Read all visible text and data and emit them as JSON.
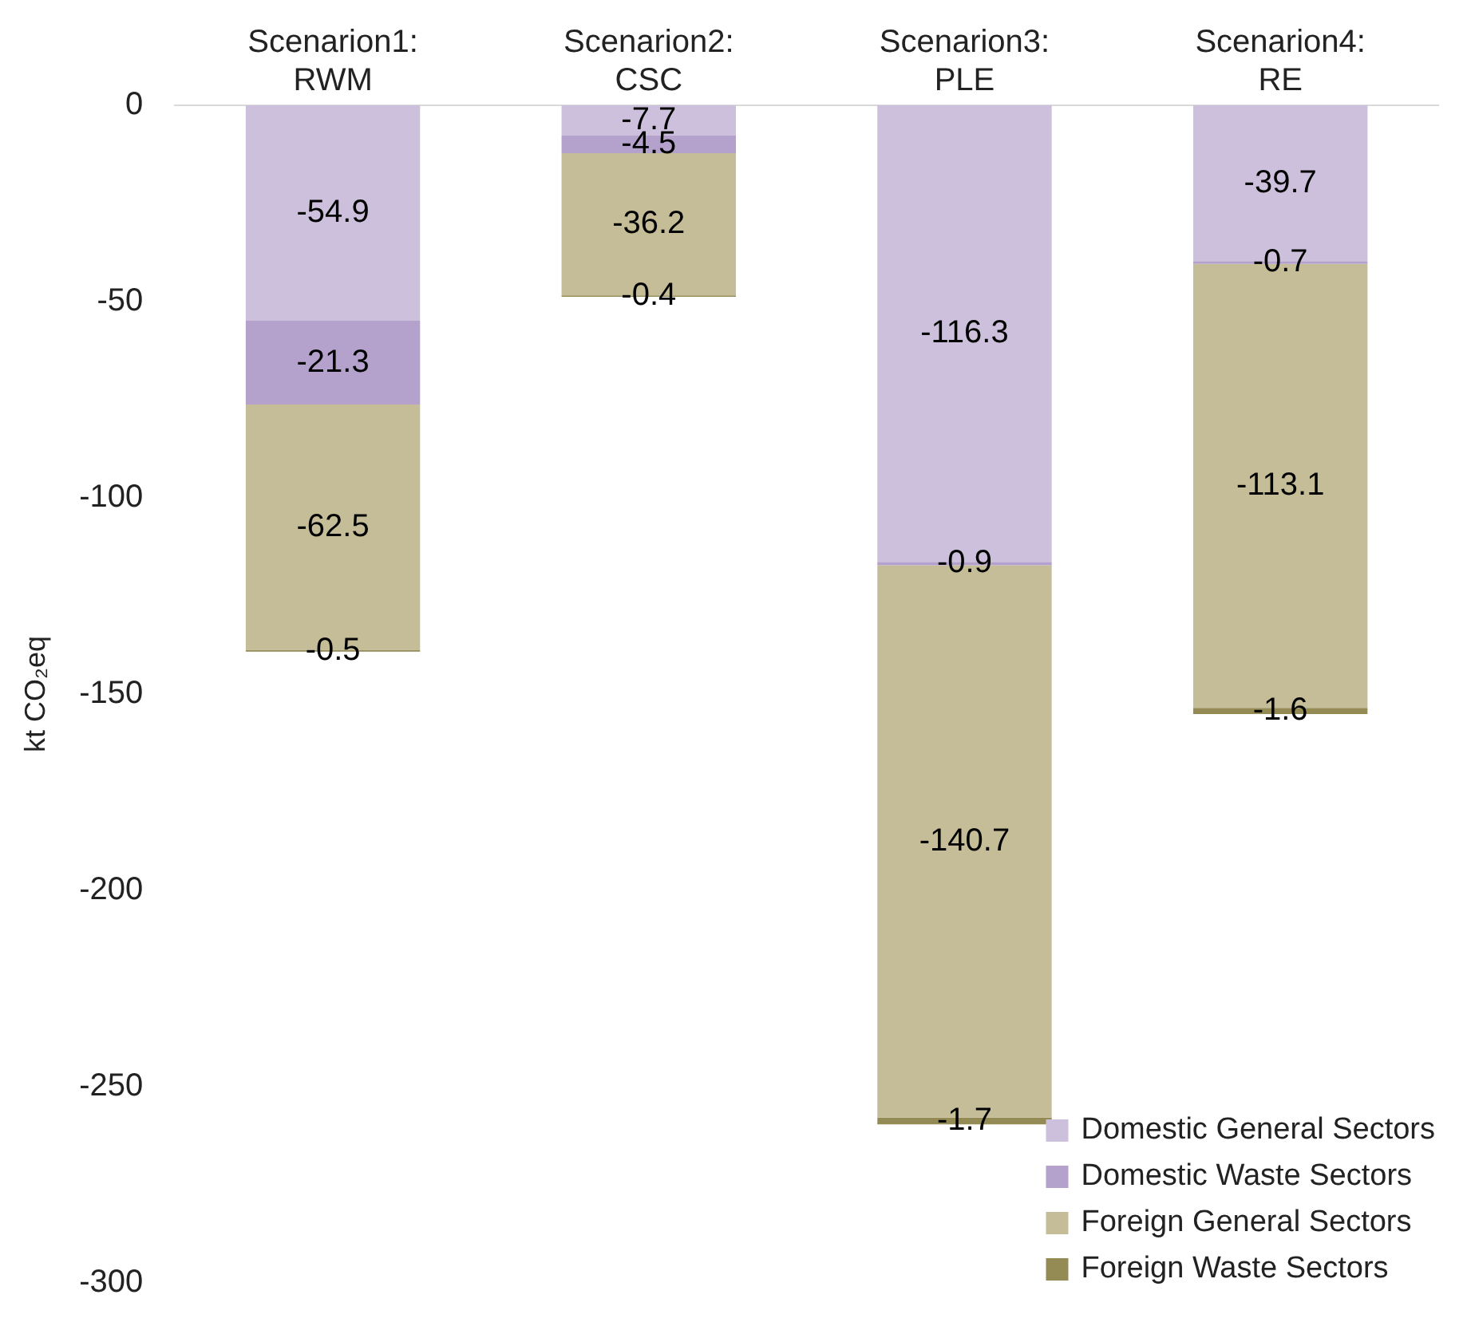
{
  "chart_data": {
    "type": "bar",
    "stacked": true,
    "categories": [
      "Scenarion1: RWM",
      "Scenarion2: CSC",
      "Scenarion3: PLE",
      "Scenarion4: RE"
    ],
    "series": [
      {
        "name": "Domestic General Sectors",
        "color": "#ccc0dc",
        "values": [
          -54.9,
          -7.7,
          -116.3,
          -39.7
        ]
      },
      {
        "name": "Domestic Waste Sectors",
        "color": "#b4a2cc",
        "values": [
          -21.3,
          -4.5,
          -0.9,
          -0.7
        ]
      },
      {
        "name": "Foreign General Sectors",
        "color": "#c4bd97",
        "values": [
          -62.5,
          -36.2,
          -140.7,
          -113.1
        ]
      },
      {
        "name": "Foreign Waste Sectors",
        "color": "#948a54",
        "values": [
          -0.5,
          -0.4,
          -1.7,
          -1.6
        ]
      }
    ],
    "ylabel": "kt CO₂eq",
    "ylim": [
      -300,
      0
    ],
    "yticks": [
      0,
      -50,
      -100,
      -150,
      -200,
      -250,
      -300
    ],
    "grid": false,
    "legend": "bottom right",
    "data_labels": true
  }
}
